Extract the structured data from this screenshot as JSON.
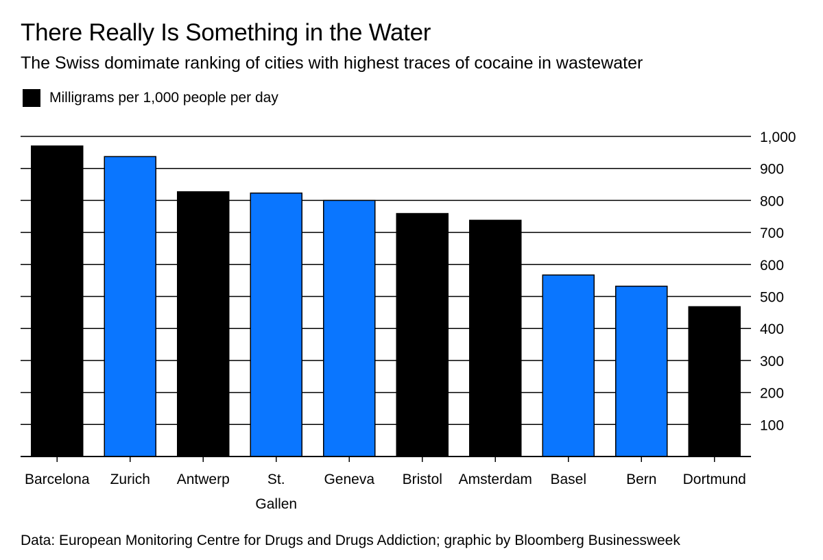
{
  "colors": {
    "background": "#ffffff",
    "text": "#000000",
    "other_city_bar": "#000000",
    "swiss_city_bar": "#0a76ff"
  },
  "chart_data": {
    "type": "bar",
    "title": "There Really Is Something in the Water",
    "subtitle": "The Swiss domimate ranking of cities with highest traces of cocaine in wastewater",
    "legend": {
      "placement": "top-left",
      "entries": [
        {
          "label": "Milligrams per 1,000 people per day",
          "color": "#000000"
        }
      ]
    },
    "categories": [
      [
        "Barcelona"
      ],
      [
        "Zurich"
      ],
      [
        "Antwerp"
      ],
      [
        "St.",
        "Gallen"
      ],
      [
        "Geneva"
      ],
      [
        "Bristol"
      ],
      [
        "Amsterdam"
      ],
      [
        "Basel"
      ],
      [
        "Bern"
      ],
      [
        "Dortmund"
      ]
    ],
    "values": [
      970,
      937,
      827,
      823,
      800,
      759,
      738,
      567,
      532,
      468
    ],
    "bar_colors": [
      "#000000",
      "#0a76ff",
      "#000000",
      "#0a76ff",
      "#0a76ff",
      "#000000",
      "#000000",
      "#0a76ff",
      "#0a76ff",
      "#000000"
    ],
    "ylim": [
      0,
      1000
    ],
    "yticks": [
      100,
      200,
      300,
      400,
      500,
      600,
      700,
      800,
      900,
      1000
    ],
    "ytick_labels": [
      "100",
      "200",
      "300",
      "400",
      "500",
      "600",
      "700",
      "800",
      "900",
      "1,000"
    ],
    "y_axis_side": "right",
    "grid": true,
    "xlabel": "",
    "ylabel": ""
  },
  "source": "Data: European Monitoring Centre for Drugs and Drugs Addiction; graphic by Bloomberg Businessweek"
}
